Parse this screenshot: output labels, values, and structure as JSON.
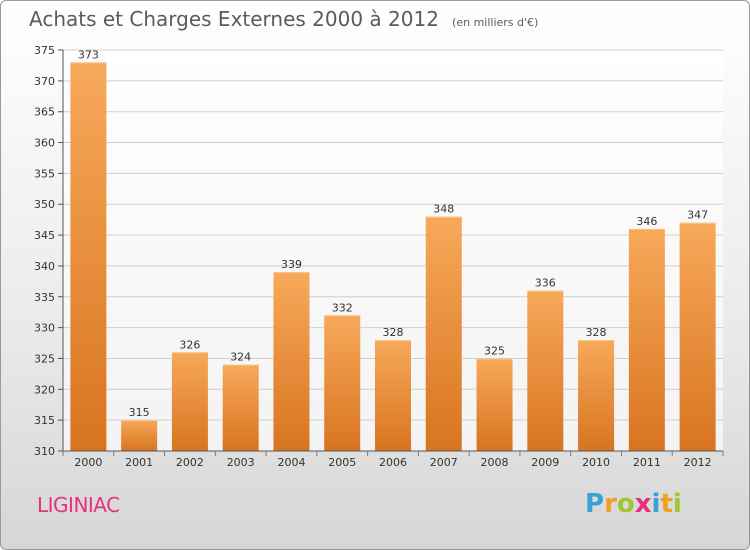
{
  "title": "Achats et Charges Externes 2000 à 2012",
  "unit": "(en milliers d'€)",
  "commune": "LIGINIAC",
  "logo": {
    "letters": [
      "P",
      "r",
      "o",
      "x",
      "i",
      "t",
      "i"
    ],
    "colors": [
      "#3aa0d8",
      "#f0a020",
      "#9cc830",
      "#e8317a",
      "#3aa0d8",
      "#f0a020",
      "#9cc830"
    ]
  },
  "colors": {
    "bar_light": "#f7a95a",
    "bar_dark": "#d87420",
    "grid": "#cfcfcf",
    "text": "#333333",
    "commune": "#e8317a"
  },
  "chart_data": {
    "type": "bar",
    "categories": [
      "2000",
      "2001",
      "2002",
      "2003",
      "2004",
      "2005",
      "2006",
      "2007",
      "2008",
      "2009",
      "2010",
      "2011",
      "2012"
    ],
    "values": [
      373,
      315,
      326,
      324,
      339,
      332,
      328,
      348,
      325,
      336,
      328,
      346,
      347
    ],
    "data_labels": [
      "373",
      "315",
      "326",
      "324",
      "339",
      "332",
      "328",
      "348",
      "325",
      "336",
      "328",
      "346",
      "347"
    ],
    "ylim": [
      310,
      375
    ],
    "yticks": [
      310,
      315,
      320,
      325,
      330,
      335,
      340,
      345,
      350,
      355,
      360,
      365,
      370,
      375
    ],
    "grid": true
  }
}
